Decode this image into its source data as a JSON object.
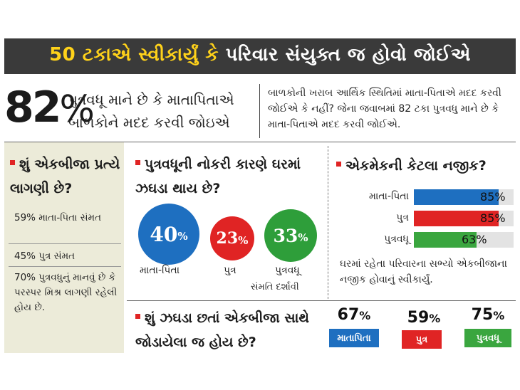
{
  "header": {
    "title_part1": "50 ટકાએ સ્વીકાર્યું કે",
    "title_part2": "પરિવાર સંયુક્ત જ હોવો જોઈએ"
  },
  "highlight": {
    "number": "82",
    "percent_sign": "%",
    "line1": "પુત્રવધૂ માને છે કે માતાપિતાએ",
    "line2": "બાળકોને મદદ કરવી જોઇએ"
  },
  "note": "બાળકોની ખરાબ આર્થિક સ્થિતિમાં માતા-પિતાએ મદદ કરવી જોઈએ કે નહીં? જેના જવાબમાં 82 ટકા પુત્રવધુ માને છે કે માતા-પિતાએ મદદ કરવી જોઈએ.",
  "left_panel": {
    "title": "શું એકબીજા પ્રત્યે લાગણી છે?",
    "rows": [
      "59% માતા-પિતા સંમત",
      "45% પુત્ર સંમત",
      "70% પુત્રવધુનું માનવું છે કે પરસ્પર મિશ્ર લાગણી રહેલી હોય છે."
    ]
  },
  "middle": {
    "title": "પુત્રવધૂની નોકરી કારણે ઘરમાં ઝઘડા થાય છે?",
    "circles": [
      {
        "value": "40",
        "unit": "%",
        "label": "માતા-પિતા",
        "color": "#1e6fc0"
      },
      {
        "value": "23",
        "unit": "%",
        "label": "પુત્ર",
        "color": "#e02424"
      },
      {
        "value": "33",
        "unit": "%",
        "label": "પુત્રવધૂ",
        "sublabel": "સંમતિ દર્શાવી",
        "color": "#2e9e3a"
      }
    ]
  },
  "right": {
    "title": "એકમેકની કેટલા નજીક?",
    "bars": [
      {
        "label": "માતા-પિતા",
        "value": 85,
        "value_text": "85%",
        "color": "#1e6fc0"
      },
      {
        "label": "પુત્ર",
        "value": 85,
        "value_text": "85%",
        "color": "#e02424"
      },
      {
        "label": "પુત્રવધૂ",
        "value": 63,
        "value_text": "63%",
        "color": "#3aa63f"
      }
    ],
    "caption": "ઘરમાં રહેતા પરિવારના સભ્યો એકબીજાના નજીક હોવાનું સ્વીકાર્યું."
  },
  "bottom": {
    "title": "શું ઝઘડા છતાં એકબીજા સાથે જોડાયેલા જ હોય છે?",
    "items": [
      {
        "value": "67",
        "unit": "%",
        "label": "માતાપિતા",
        "color": "#1e6fc0"
      },
      {
        "value": "59",
        "unit": "%",
        "label": "પુત્ર",
        "color": "#e02424"
      },
      {
        "value": "75",
        "unit": "%",
        "label": "પુત્રવધૂ",
        "color": "#3aa63f"
      }
    ]
  }
}
